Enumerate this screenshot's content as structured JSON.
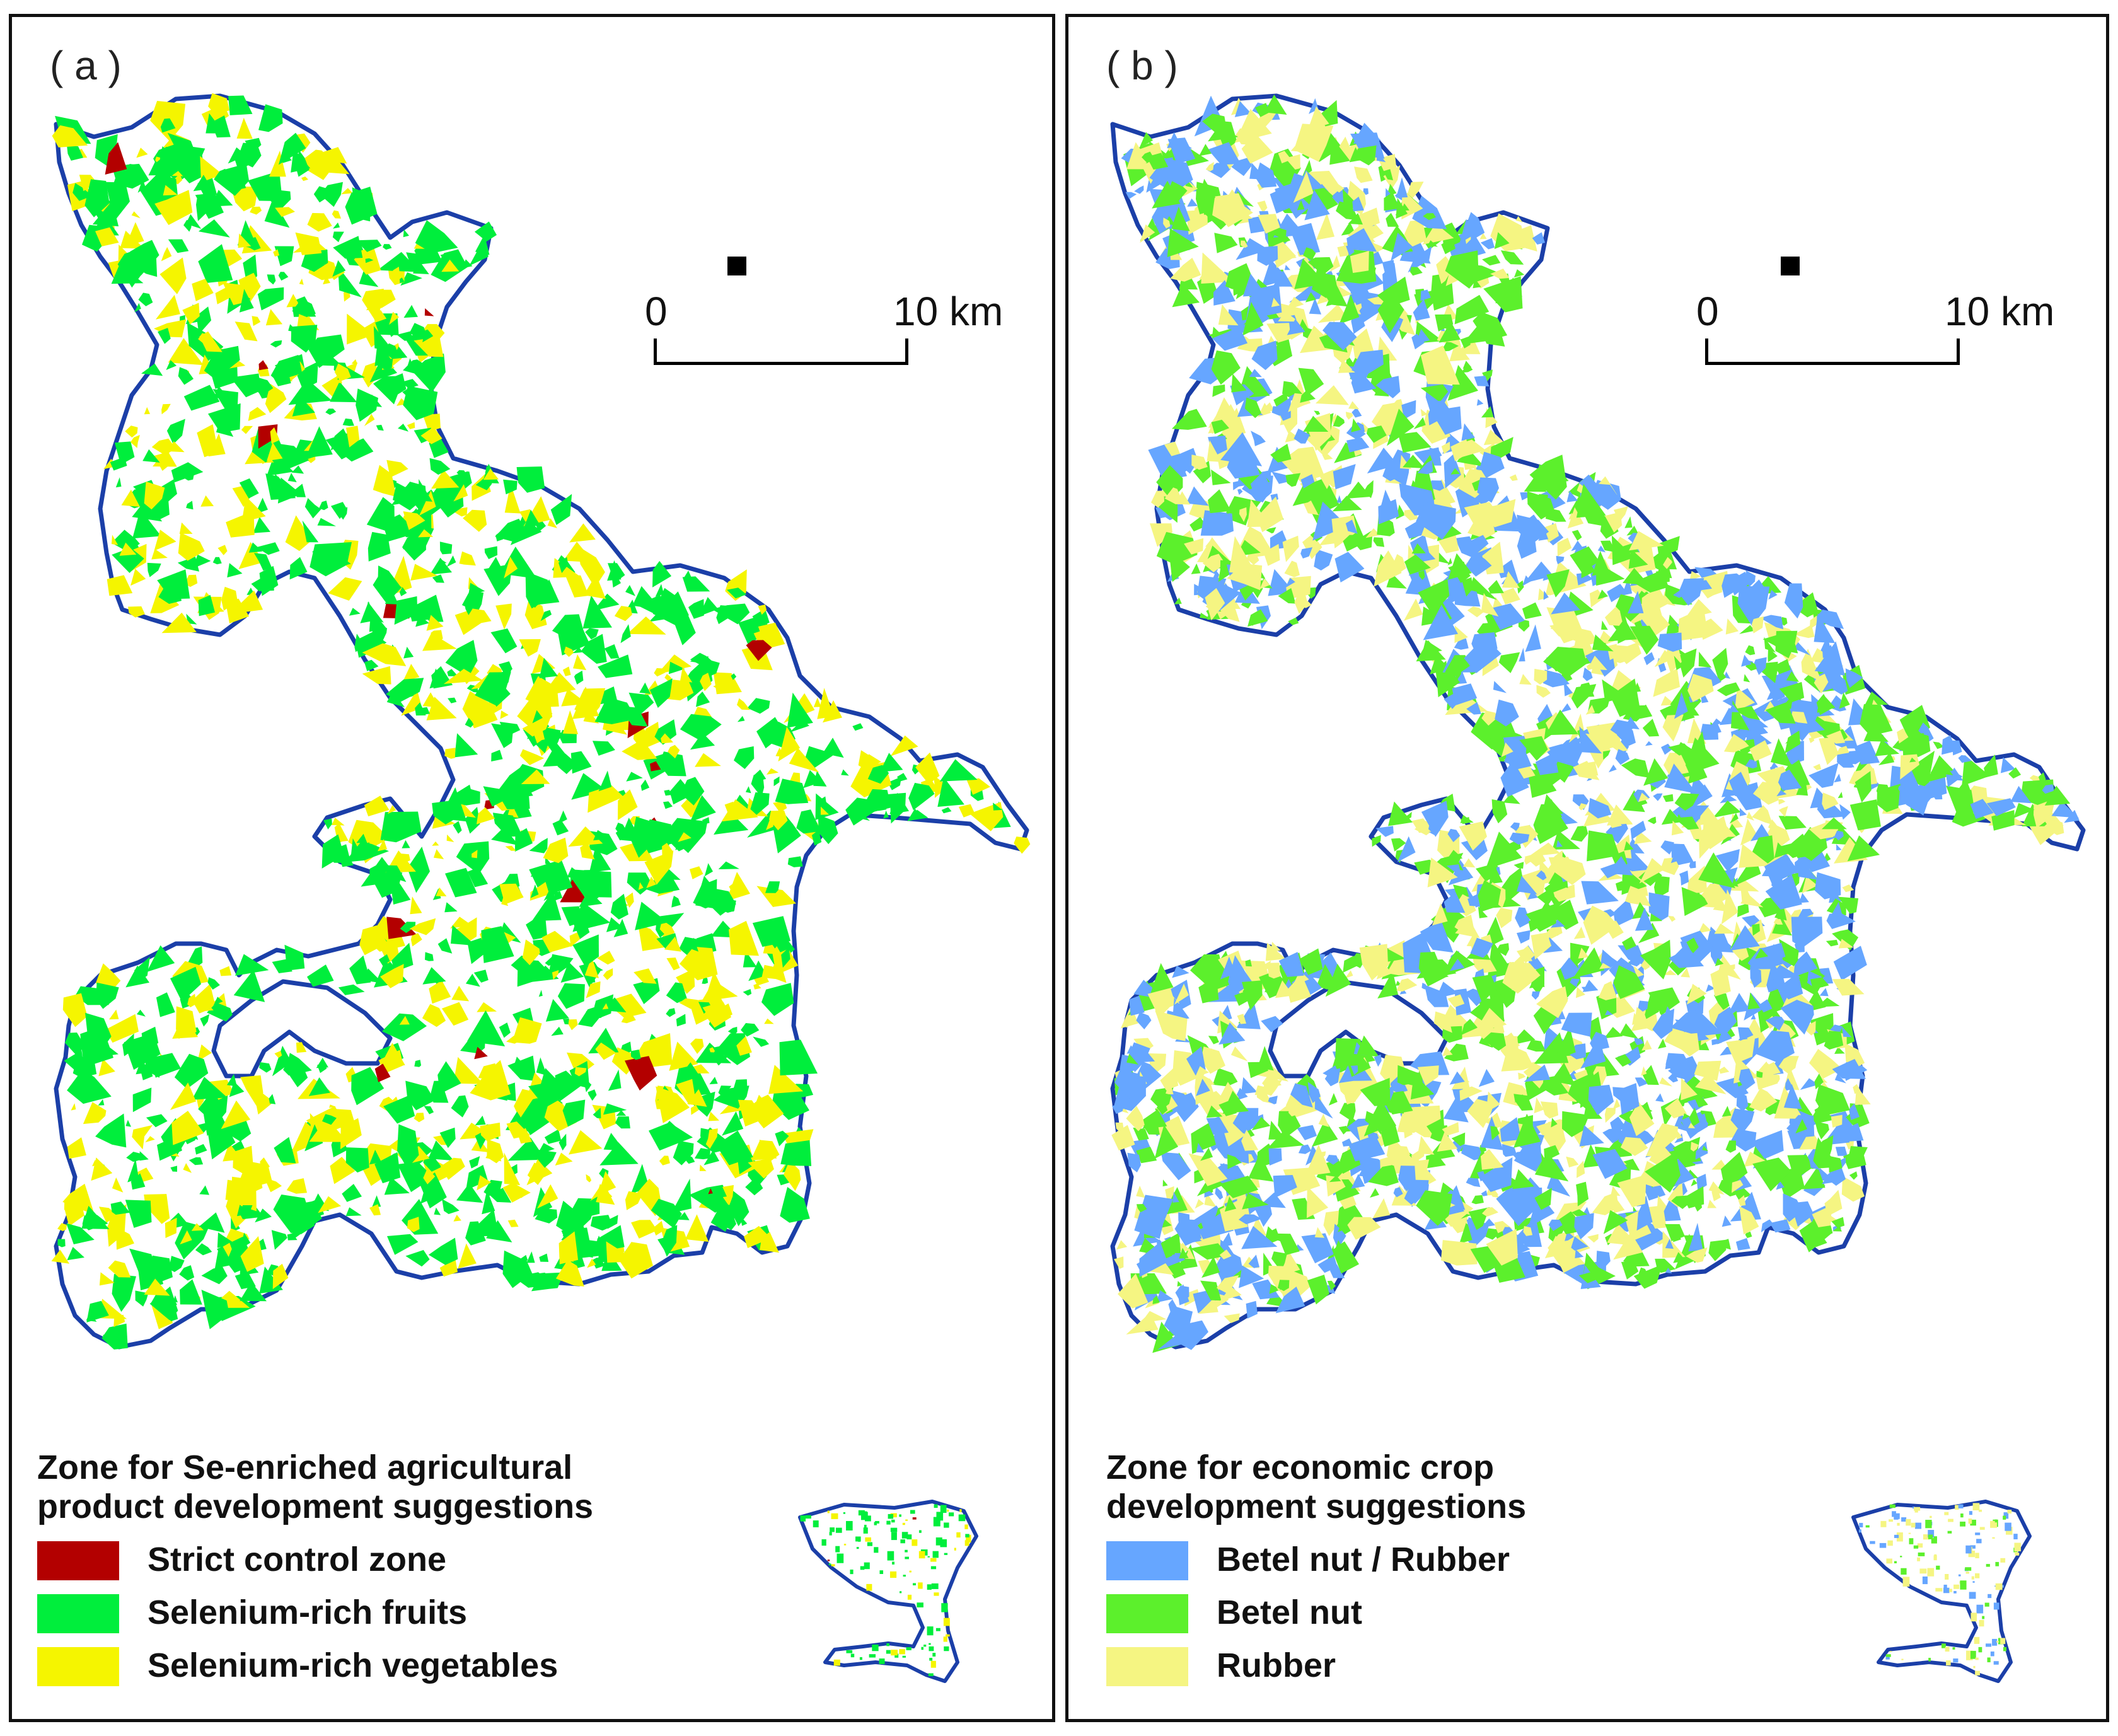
{
  "panel_a": {
    "label": "( a )",
    "scale": {
      "zero": "0",
      "end": "10 km"
    },
    "legend": {
      "title_line1": "Zone for Se-enriched agricultural",
      "title_line2": "product development suggestions",
      "items": [
        {
          "label": "Strict control zone",
          "color": "#b30000"
        },
        {
          "label": "Selenium-rich fruits",
          "color": "#00ee3c"
        },
        {
          "label": "Selenium-rich vegetables",
          "color": "#f5f500"
        }
      ]
    }
  },
  "panel_b": {
    "label": "( b )",
    "scale": {
      "zero": "0",
      "end": "10 km"
    },
    "legend": {
      "title_line1": "Zone for economic crop",
      "title_line2": "development suggestions",
      "items": [
        {
          "label": "Betel nut / Rubber",
          "color": "#66a6ff"
        },
        {
          "label": "Betel nut",
          "color": "#5cf02c"
        },
        {
          "label": "Rubber",
          "color": "#f5f582"
        }
      ]
    }
  },
  "boundary_color": "#1b3fa8"
}
